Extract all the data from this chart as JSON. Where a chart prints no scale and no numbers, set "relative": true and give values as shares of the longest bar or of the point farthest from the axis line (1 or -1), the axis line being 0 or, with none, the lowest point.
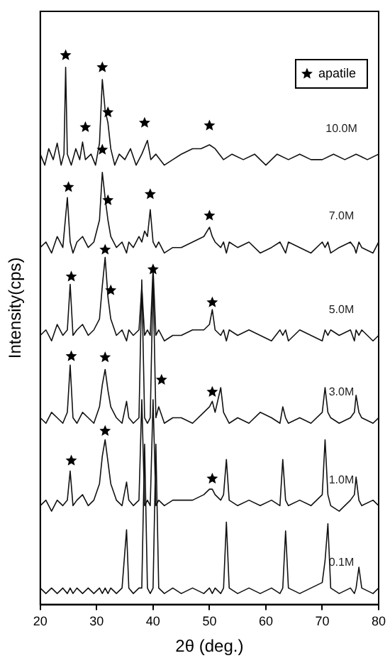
{
  "chart_data": {
    "type": "line",
    "relative": true,
    "xlabel": "2θ (deg.)",
    "ylabel": "Intensity(cps)",
    "xlim": [
      20,
      80
    ],
    "xticks": [
      20,
      30,
      40,
      50,
      60,
      70,
      80
    ],
    "legend": "top right",
    "x": [
      20,
      21,
      22,
      23,
      24,
      24.8,
      25.3,
      25.8,
      26.5,
      27.5,
      28.5,
      29.5,
      30.5,
      31,
      31.5,
      32,
      32.5,
      33.5,
      34.5,
      35.3,
      35.7,
      36.5,
      37.5,
      38,
      38.5,
      39,
      39.5,
      40,
      40.5,
      41,
      42,
      43.5,
      45,
      47,
      49,
      50,
      50.5,
      51,
      52,
      52.5,
      53,
      53.5,
      55,
      57,
      59,
      61,
      62.5,
      63,
      63.5,
      64,
      66,
      68,
      70,
      70.5,
      71,
      71.5,
      73,
      75,
      75.7,
      76,
      76.5,
      77,
      79,
      80
    ],
    "series": [
      {
        "name": "10.0M",
        "color": "#111111",
        "x": [
          20,
          20.8,
          21.5,
          22.3,
          23,
          23.7,
          24.2,
          24.5,
          24.8,
          25.5,
          26.3,
          27,
          27.5,
          28,
          29,
          29.8,
          30.5,
          31,
          31.5,
          32,
          32.5,
          33.2,
          34,
          35,
          36,
          37,
          38,
          39,
          39.6,
          40.5,
          42,
          43.5,
          45,
          47,
          48.5,
          50,
          51,
          52.5,
          54,
          56,
          58,
          60,
          62,
          64,
          66,
          68,
          70,
          72,
          74,
          76,
          78,
          80
        ],
        "values": [
          0.82,
          0.8,
          0.83,
          0.81,
          0.84,
          0.8,
          0.82,
          0.978,
          0.82,
          0.8,
          0.83,
          0.81,
          0.842,
          0.81,
          0.82,
          0.8,
          0.84,
          0.956,
          0.9,
          0.877,
          0.83,
          0.8,
          0.82,
          0.81,
          0.83,
          0.8,
          0.82,
          0.845,
          0.81,
          0.82,
          0.8,
          0.81,
          0.82,
          0.83,
          0.83,
          0.837,
          0.83,
          0.81,
          0.82,
          0.81,
          0.82,
          0.8,
          0.82,
          0.81,
          0.82,
          0.81,
          0.81,
          0.82,
          0.81,
          0.82,
          0.81,
          0.82
        ]
      },
      {
        "name": "7.0M",
        "color": "#111111",
        "values": [
          0.65,
          0.66,
          0.64,
          0.67,
          0.65,
          0.741,
          0.66,
          0.64,
          0.66,
          0.67,
          0.65,
          0.66,
          0.7,
          0.787,
          0.74,
          0.7,
          0.67,
          0.65,
          0.66,
          0.64,
          0.66,
          0.65,
          0.67,
          0.66,
          0.68,
          0.67,
          0.719,
          0.66,
          0.65,
          0.66,
          0.64,
          0.65,
          0.65,
          0.66,
          0.67,
          0.687,
          0.67,
          0.66,
          0.65,
          0.66,
          0.64,
          0.66,
          0.65,
          0.66,
          0.64,
          0.65,
          0.66,
          0.65,
          0.64,
          0.66,
          0.65,
          0.64,
          0.66,
          0.65,
          0.66,
          0.64,
          0.65,
          0.66,
          0.65,
          0.64,
          0.66,
          0.65,
          0.64,
          0.66
        ]
      },
      {
        "name": "5.0M",
        "color": "#111111",
        "values": [
          0.49,
          0.5,
          0.48,
          0.51,
          0.49,
          0.5,
          0.583,
          0.49,
          0.5,
          0.51,
          0.49,
          0.5,
          0.52,
          0.58,
          0.632,
          0.56,
          0.52,
          0.49,
          0.5,
          0.48,
          0.5,
          0.49,
          0.5,
          0.578,
          0.49,
          0.5,
          0.49,
          0.613,
          0.49,
          0.5,
          0.48,
          0.49,
          0.49,
          0.5,
          0.5,
          0.51,
          0.537,
          0.5,
          0.49,
          0.5,
          0.48,
          0.5,
          0.49,
          0.5,
          0.49,
          0.48,
          0.5,
          0.49,
          0.5,
          0.48,
          0.5,
          0.49,
          0.48,
          0.5,
          0.49,
          0.5,
          0.49,
          0.5,
          0.48,
          0.5,
          0.49,
          0.5,
          0.48,
          0.49
        ]
      },
      {
        "name": "3.0M",
        "color": "#111111",
        "values": [
          0.34,
          0.33,
          0.35,
          0.34,
          0.33,
          0.35,
          0.436,
          0.34,
          0.33,
          0.35,
          0.34,
          0.33,
          0.36,
          0.4,
          0.428,
          0.39,
          0.36,
          0.34,
          0.33,
          0.37,
          0.34,
          0.33,
          0.34,
          0.591,
          0.34,
          0.33,
          0.34,
          0.597,
          0.34,
          0.36,
          0.33,
          0.34,
          0.34,
          0.33,
          0.35,
          0.36,
          0.37,
          0.35,
          0.395,
          0.35,
          0.34,
          0.33,
          0.34,
          0.33,
          0.35,
          0.34,
          0.33,
          0.36,
          0.34,
          0.33,
          0.34,
          0.33,
          0.35,
          0.395,
          0.35,
          0.34,
          0.33,
          0.34,
          0.35,
          0.381,
          0.35,
          0.34,
          0.33,
          0.34
        ]
      },
      {
        "name": "1.0M",
        "color": "#111111",
        "values": [
          0.18,
          0.19,
          0.17,
          0.19,
          0.18,
          0.19,
          0.243,
          0.18,
          0.19,
          0.2,
          0.18,
          0.19,
          0.22,
          0.27,
          0.3,
          0.26,
          0.22,
          0.19,
          0.18,
          0.223,
          0.19,
          0.18,
          0.19,
          0.373,
          0.18,
          0.19,
          0.18,
          0.373,
          0.18,
          0.19,
          0.18,
          0.19,
          0.19,
          0.19,
          0.2,
          0.21,
          0.21,
          0.2,
          0.19,
          0.2,
          0.264,
          0.19,
          0.18,
          0.19,
          0.18,
          0.19,
          0.18,
          0.264,
          0.19,
          0.18,
          0.19,
          0.18,
          0.2,
          0.3,
          0.2,
          0.18,
          0.17,
          0.19,
          0.2,
          0.232,
          0.19,
          0.18,
          0.19,
          0.18
        ]
      },
      {
        "name": "0.1M",
        "color": "#111111",
        "values": [
          0.03,
          0.02,
          0.03,
          0.02,
          0.03,
          0.02,
          0.03,
          0.02,
          0.03,
          0.02,
          0.03,
          0.02,
          0.03,
          0.02,
          0.03,
          0.02,
          0.03,
          0.02,
          0.03,
          0.136,
          0.03,
          0.02,
          0.03,
          0.03,
          0.292,
          0.03,
          0.02,
          0.03,
          0.292,
          0.03,
          0.02,
          0.03,
          0.02,
          0.03,
          0.02,
          0.03,
          0.02,
          0.03,
          0.02,
          0.03,
          0.15,
          0.03,
          0.02,
          0.03,
          0.02,
          0.03,
          0.02,
          0.03,
          0.134,
          0.03,
          0.02,
          0.03,
          0.04,
          0.08,
          0.147,
          0.03,
          0.02,
          0.03,
          0.02,
          0.03,
          0.068,
          0.03,
          0.02,
          0.03
        ]
      },
      {
        "name": "apatile",
        "type": "scatter",
        "marker": "star",
        "color": "#000000",
        "x": [
          24.5,
          28,
          31,
          32,
          38.5,
          50,
          25,
          31,
          32,
          39.5,
          50,
          25.5,
          31.5,
          32.5,
          40,
          50.5,
          25.5,
          31.5,
          41.5,
          50.5,
          25.5,
          31.5,
          50.5
        ],
        "values": [
          1.0,
          0.869,
          0.978,
          0.896,
          0.877,
          0.872,
          0.76,
          0.828,
          0.736,
          0.747,
          0.708,
          0.597,
          0.646,
          0.572,
          0.61,
          0.55,
          0.452,
          0.45,
          0.409,
          0.387,
          0.262,
          0.316,
          0.229
        ]
      }
    ]
  }
}
